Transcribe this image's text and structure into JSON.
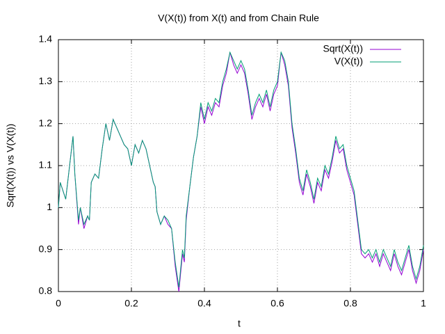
{
  "chart_data": {
    "type": "line",
    "title": "V(X(t)) from X(t) and from Chain Rule",
    "x_label": "t",
    "y_label": "Sqrt(X(t)) vs V(X(t))",
    "x": [
      0,
      0.005,
      0.02,
      0.04,
      0.045,
      0.055,
      0.06,
      0.07,
      0.08,
      0.085,
      0.09,
      0.1,
      0.11,
      0.12,
      0.13,
      0.14,
      0.15,
      0.17,
      0.18,
      0.19,
      0.2,
      0.21,
      0.22,
      0.23,
      0.24,
      0.26,
      0.265,
      0.27,
      0.28,
      0.29,
      0.3,
      0.31,
      0.32,
      0.33,
      0.34,
      0.345,
      0.35,
      0.36,
      0.37,
      0.38,
      0.39,
      0.4,
      0.41,
      0.42,
      0.43,
      0.44,
      0.45,
      0.46,
      0.47,
      0.48,
      0.49,
      0.5,
      0.51,
      0.52,
      0.53,
      0.54,
      0.55,
      0.56,
      0.57,
      0.58,
      0.59,
      0.6,
      0.61,
      0.62,
      0.63,
      0.64,
      0.65,
      0.66,
      0.67,
      0.68,
      0.69,
      0.7,
      0.71,
      0.72,
      0.73,
      0.74,
      0.75,
      0.76,
      0.77,
      0.78,
      0.79,
      0.8,
      0.81,
      0.82,
      0.83,
      0.84,
      0.85,
      0.86,
      0.87,
      0.88,
      0.89,
      0.9,
      0.91,
      0.92,
      0.93,
      0.94,
      0.95,
      0.96,
      0.97,
      0.98,
      0.99,
      1
    ],
    "series": [
      {
        "name": "Sqrt(X(t))",
        "color": "#9400d3",
        "values": [
          1.0,
          1.06,
          1.02,
          1.17,
          1.08,
          0.96,
          1.0,
          0.95,
          0.98,
          0.97,
          1.06,
          1.08,
          1.07,
          1.14,
          1.2,
          1.16,
          1.21,
          1.17,
          1.15,
          1.14,
          1.1,
          1.15,
          1.13,
          1.16,
          1.14,
          1.06,
          1.05,
          0.99,
          0.96,
          0.98,
          0.96,
          0.95,
          0.86,
          0.8,
          0.89,
          0.87,
          0.97,
          1.05,
          1.12,
          1.17,
          1.24,
          1.2,
          1.24,
          1.22,
          1.25,
          1.24,
          1.29,
          1.32,
          1.37,
          1.34,
          1.32,
          1.34,
          1.32,
          1.27,
          1.21,
          1.24,
          1.26,
          1.24,
          1.27,
          1.23,
          1.27,
          1.29,
          1.37,
          1.34,
          1.29,
          1.19,
          1.13,
          1.06,
          1.03,
          1.08,
          1.05,
          1.01,
          1.06,
          1.04,
          1.09,
          1.07,
          1.11,
          1.16,
          1.13,
          1.14,
          1.09,
          1.06,
          1.03,
          0.96,
          0.89,
          0.88,
          0.89,
          0.87,
          0.89,
          0.86,
          0.89,
          0.87,
          0.85,
          0.89,
          0.86,
          0.84,
          0.87,
          0.9,
          0.85,
          0.82,
          0.85,
          0.9
        ]
      },
      {
        "name": "V(X(t))",
        "color": "#009e73",
        "values": [
          1.0,
          1.06,
          1.02,
          1.17,
          1.08,
          0.97,
          1.0,
          0.96,
          0.98,
          0.97,
          1.06,
          1.08,
          1.07,
          1.14,
          1.2,
          1.16,
          1.21,
          1.17,
          1.15,
          1.14,
          1.1,
          1.15,
          1.13,
          1.16,
          1.14,
          1.06,
          1.05,
          0.99,
          0.96,
          0.98,
          0.97,
          0.95,
          0.87,
          0.81,
          0.9,
          0.88,
          0.98,
          1.05,
          1.12,
          1.17,
          1.25,
          1.21,
          1.25,
          1.23,
          1.26,
          1.25,
          1.3,
          1.33,
          1.37,
          1.35,
          1.33,
          1.35,
          1.33,
          1.28,
          1.22,
          1.25,
          1.27,
          1.25,
          1.28,
          1.24,
          1.28,
          1.3,
          1.37,
          1.35,
          1.3,
          1.2,
          1.14,
          1.07,
          1.04,
          1.09,
          1.06,
          1.02,
          1.07,
          1.05,
          1.1,
          1.08,
          1.12,
          1.17,
          1.14,
          1.15,
          1.1,
          1.07,
          1.04,
          0.97,
          0.9,
          0.89,
          0.9,
          0.88,
          0.9,
          0.87,
          0.9,
          0.88,
          0.86,
          0.9,
          0.87,
          0.85,
          0.88,
          0.91,
          0.86,
          0.83,
          0.86,
          0.91
        ]
      }
    ],
    "xlim": [
      0,
      1
    ],
    "xticks": [
      0,
      0.2,
      0.4,
      0.6,
      0.8,
      1
    ],
    "ylim": [
      0.8,
      1.4
    ],
    "yticks": [
      0.8,
      0.9,
      1,
      1.1,
      1.2,
      1.3,
      1.4
    ],
    "grid": true,
    "legend": "top-right"
  }
}
